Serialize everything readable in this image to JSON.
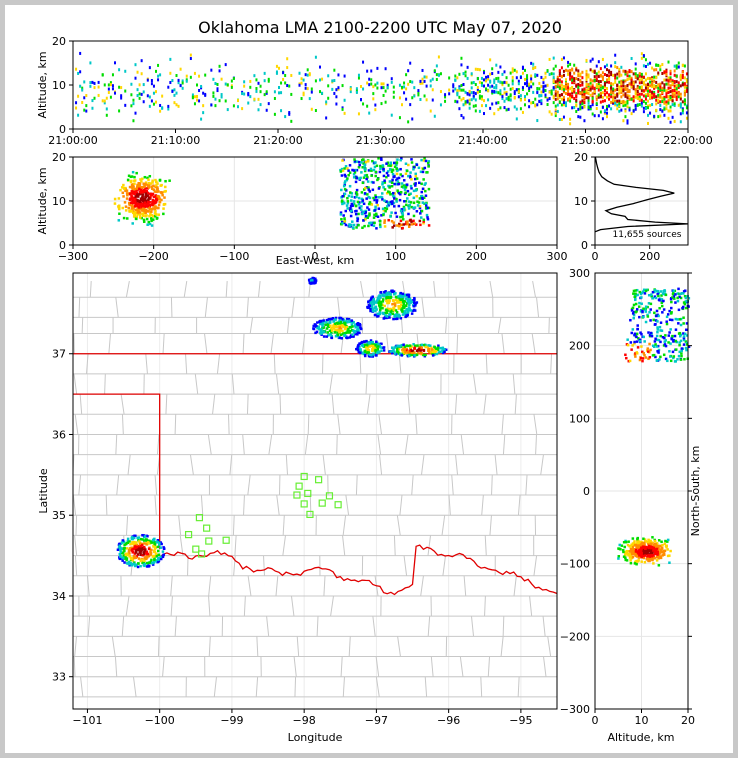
{
  "chart_data": {
    "type": "lightning-mapping-array",
    "title": "Oklahoma LMA 2100-2200 UTC May 07, 2020",
    "colors": {
      "county": "#c8c8c8",
      "state": "#e00000",
      "station": "#66ee33",
      "alt_profile": "#000000"
    },
    "colormap": [
      "#0000ff",
      "#00c8c8",
      "#00dd00",
      "#ffd700",
      "#ff8c00",
      "#ff0000",
      "#a00000"
    ],
    "panels": {
      "time_height": {
        "ylabel": "Altitude, km",
        "ylim": [
          0,
          20
        ],
        "xticks": [
          "21:00:00",
          "21:10:00",
          "21:20:00",
          "21:30:00",
          "21:40:00",
          "21:50:00",
          "22:00:00"
        ],
        "yticks": [
          "0",
          "10",
          "20"
        ]
      },
      "ew_height": {
        "ylabel": "Altitude, km",
        "xlabel": "East-West, km",
        "xlim": [
          -300,
          300
        ],
        "ylim": [
          0,
          20
        ],
        "xticks": [
          "−300",
          "−200",
          "−100",
          "0",
          "100",
          "200",
          "300"
        ],
        "yticks": [
          "0",
          "10",
          "20"
        ]
      },
      "alt_hist": {
        "xticks": [
          "0",
          "200"
        ],
        "yticks": [
          "0",
          "10",
          "20"
        ],
        "sources_label": "11,655 sources",
        "profile": [
          [
            0,
            3
          ],
          [
            20,
            3.5
          ],
          [
            120,
            4.2
          ],
          [
            340,
            4.8
          ],
          [
            220,
            5.2
          ],
          [
            120,
            5.8
          ],
          [
            110,
            6.5
          ],
          [
            60,
            7.1
          ],
          [
            40,
            7.8
          ],
          [
            80,
            8.6
          ],
          [
            140,
            9.4
          ],
          [
            190,
            10.3
          ],
          [
            240,
            11.1
          ],
          [
            290,
            11.8
          ],
          [
            250,
            12.4
          ],
          [
            150,
            13.1
          ],
          [
            70,
            13.8
          ],
          [
            45,
            14.6
          ],
          [
            25,
            15.5
          ],
          [
            15,
            16.5
          ],
          [
            10,
            17.5
          ],
          [
            6,
            18.5
          ],
          [
            3,
            19.5
          ],
          [
            1,
            20
          ]
        ]
      },
      "plan": {
        "xlabel": "Longitude",
        "ylabel": "Latitude",
        "xlim": [
          -101.2,
          -94.5
        ],
        "ylim": [
          32.6,
          38.0
        ],
        "xticks": [
          "−101",
          "−100",
          "−99",
          "−98",
          "−97",
          "−96",
          "−95"
        ],
        "yticks": [
          "33",
          "34",
          "35",
          "36",
          "37"
        ],
        "stations": [
          [
            -98.0,
            35.48
          ],
          [
            -97.8,
            35.44
          ],
          [
            -98.07,
            35.36
          ],
          [
            -98.1,
            35.25
          ],
          [
            -97.95,
            35.27
          ],
          [
            -97.65,
            35.24
          ],
          [
            -98.0,
            35.14
          ],
          [
            -97.75,
            35.15
          ],
          [
            -97.53,
            35.13
          ],
          [
            -97.92,
            35.01
          ],
          [
            -99.45,
            34.97
          ],
          [
            -99.35,
            34.84
          ],
          [
            -99.6,
            34.76
          ],
          [
            -99.32,
            34.68
          ],
          [
            -99.08,
            34.69
          ],
          [
            -99.5,
            34.58
          ],
          [
            -99.42,
            34.52
          ]
        ],
        "storms": [
          {
            "lon": -100.28,
            "lat": 34.57,
            "rlon": 0.33,
            "rlat": 0.2,
            "intensity": "high"
          },
          {
            "lon": -96.8,
            "lat": 37.62,
            "rlon": 0.35,
            "rlat": 0.18,
            "intensity": "medium"
          },
          {
            "lon": -97.55,
            "lat": 37.33,
            "rlon": 0.35,
            "rlat": 0.13,
            "intensity": "medium"
          },
          {
            "lon": -96.45,
            "lat": 37.06,
            "rlon": 0.4,
            "rlat": 0.08,
            "intensity": "high"
          },
          {
            "lon": -97.1,
            "lat": 37.08,
            "rlon": 0.2,
            "rlat": 0.1,
            "intensity": "medium"
          },
          {
            "lon": -97.9,
            "lat": 37.92,
            "rlon": 0.05,
            "rlat": 0.04,
            "intensity": "low"
          }
        ]
      },
      "ns_height": {
        "xlabel": "Altitude, km",
        "ylabel": "North-South, km",
        "xlim": [
          0,
          20
        ],
        "ylim": [
          -300,
          300
        ],
        "xticks": [
          "0",
          "10",
          "20"
        ],
        "yticks": [
          "−300",
          "−200",
          "−100",
          "0",
          "100",
          "200",
          "300"
        ]
      }
    }
  }
}
